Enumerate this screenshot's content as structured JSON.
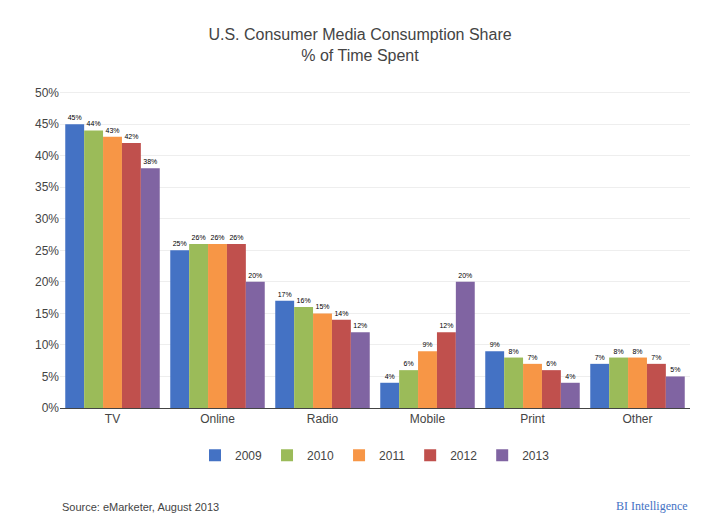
{
  "chart_data": {
    "type": "bar",
    "title": "U.S. Consumer Media Consumption Share\n% of Time Spent",
    "categories": [
      "TV",
      "Online",
      "Radio",
      "Mobile",
      "Print",
      "Other"
    ],
    "series": [
      {
        "name": "2009",
        "color": "#4472c4",
        "values": [
          45,
          25,
          17,
          4,
          9,
          7
        ],
        "value_labels": [
          "45%",
          "25%",
          "17%",
          "4%",
          "9%",
          "7%"
        ]
      },
      {
        "name": "2010",
        "color": "#9bbb59",
        "values": [
          44,
          26,
          16,
          6,
          8,
          8
        ],
        "value_labels": [
          "44%",
          "26%",
          "16%",
          "6%",
          "8%",
          "8%"
        ]
      },
      {
        "name": "2011",
        "color": "#f79646",
        "values": [
          43,
          26,
          15,
          9,
          7,
          8
        ],
        "value_labels": [
          "43%",
          "26%",
          "15%",
          "9%",
          "7%",
          "8%"
        ]
      },
      {
        "name": "2012",
        "color": "#c0504d",
        "values": [
          42,
          26,
          14,
          12,
          6,
          7
        ],
        "value_labels": [
          "42%",
          "26%",
          "14%",
          "12%",
          "6%",
          "7%"
        ]
      },
      {
        "name": "2013",
        "color": "#8064a2",
        "values": [
          38,
          20,
          12,
          20,
          4,
          5
        ],
        "value_labels": [
          "38%",
          "20%",
          "12%",
          "20%",
          "4%",
          "5%"
        ]
      }
    ],
    "ylim": [
      0,
      52
    ],
    "yticks": [
      {
        "value": 0,
        "label": "0%"
      },
      {
        "value": 5,
        "label": "5%"
      },
      {
        "value": 10,
        "label": "10%"
      },
      {
        "value": 15,
        "label": "15%"
      },
      {
        "value": 20,
        "label": "20%"
      },
      {
        "value": 25,
        "label": "25%"
      },
      {
        "value": 30,
        "label": "30%"
      },
      {
        "value": 35,
        "label": "35%"
      },
      {
        "value": 40,
        "label": "40%"
      },
      {
        "value": 45,
        "label": "45%"
      },
      {
        "value": 50,
        "label": "50%"
      }
    ],
    "grid": true,
    "legend": "bottom",
    "data_labels": true,
    "annotations": [
      {
        "text": "Source: eMarketer, August 2013"
      },
      {
        "text": "BI Intelligence",
        "color": "#4472c4"
      }
    ]
  }
}
